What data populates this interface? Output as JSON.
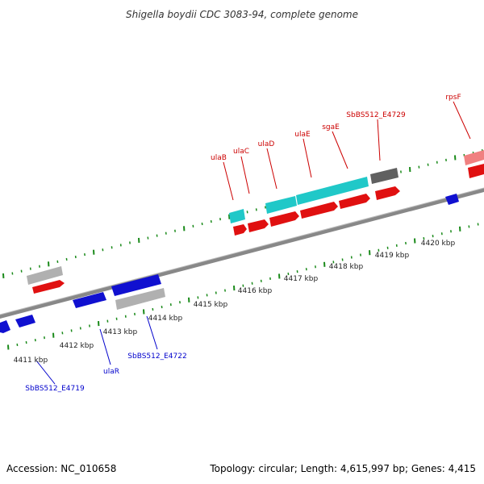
{
  "title": "Shigella boydii CDC 3083-94, complete genome",
  "accession": "Accession: NC_010658",
  "topology": "Topology: circular; Length: 4,615,997 bp; Genes: 4,415",
  "colors": {
    "forward": "#e01010",
    "forward_light": "#f08080",
    "reverse": "#1010d0",
    "cyan": "#20c8c8",
    "grey": "#b0b0b0",
    "dark_grey": "#606060",
    "tick": "#1a8a1a",
    "label_forward": "#cc0000",
    "label_reverse": "#0000cc",
    "backbone": "#888888"
  },
  "kbp_labels": [
    "4411 kbp",
    "4412 kbp",
    "4413 kbp",
    "4414 kbp",
    "4415 kbp",
    "4416 kbp",
    "4417 kbp",
    "4418 kbp",
    "4419 kbp",
    "4420 kbp"
  ],
  "gene_labels_forward": [
    "ulaB",
    "ulaC",
    "ulaD",
    "ulaE",
    "sgaE",
    "SbBS512_E4729",
    "rpsF"
  ],
  "gene_labels_reverse": [
    "SbBS512_E4719",
    "ulaR",
    "SbBS512_E4722"
  ]
}
